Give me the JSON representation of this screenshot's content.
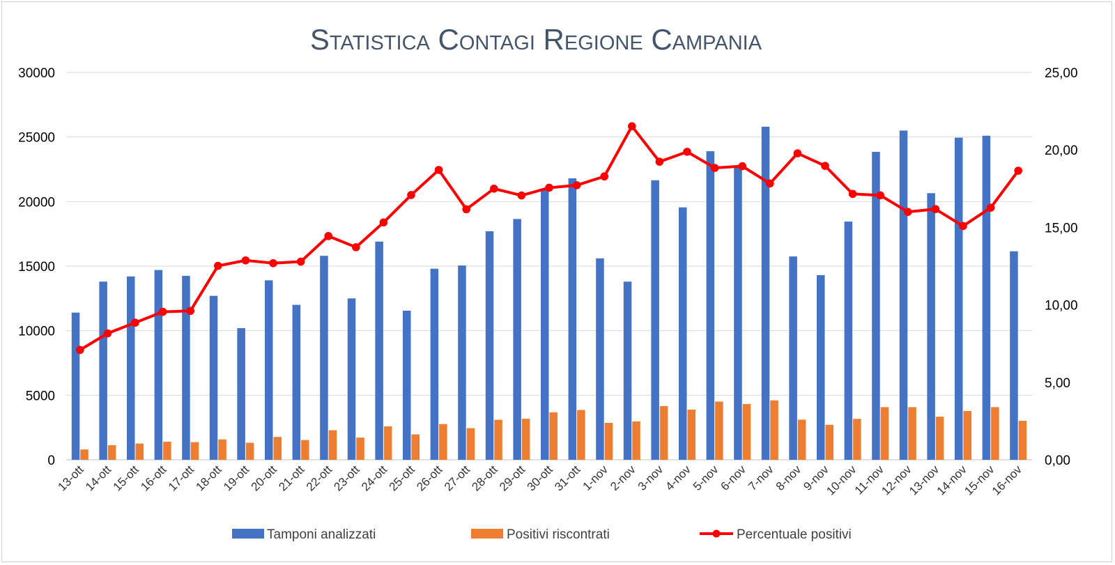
{
  "chart_data": {
    "type": "bar",
    "title": "Statistica Contagi Regione Campania",
    "categories": [
      "13-ott",
      "14-ott",
      "15-ott",
      "16-ott",
      "17-ott",
      "18-ott",
      "19-ott",
      "20-ott",
      "21-ott",
      "22-ott",
      "23-ott",
      "24-ott",
      "25-ott",
      "26-ott",
      "27-ott",
      "28-ott",
      "29-ott",
      "30-ott",
      "31-ott",
      "1-nov",
      "2-nov",
      "3-nov",
      "4-nov",
      "5-nov",
      "6-nov",
      "7-nov",
      "8-nov",
      "9-nov",
      "10-nov",
      "11-nov",
      "12-nov",
      "13-nov",
      "14-nov",
      "15-nov",
      "16-nov"
    ],
    "y_left": {
      "min": 0,
      "max": 30000,
      "ticks": [
        "0",
        "5000",
        "10000",
        "15000",
        "20000",
        "25000",
        "30000"
      ]
    },
    "y_right": {
      "min": 0,
      "max": 25,
      "ticks": [
        "0,00",
        "5,00",
        "10,00",
        "15,00",
        "20,00",
        "25,00"
      ]
    },
    "grid": true,
    "legend_position": "bottom",
    "series": [
      {
        "name": "Tamponi analizzati",
        "kind": "bar",
        "axis": "left",
        "color": "#4472c4",
        "values": [
          11400,
          13800,
          14200,
          14700,
          14250,
          12700,
          10200,
          13900,
          12000,
          15800,
          12500,
          16900,
          11550,
          14800,
          15050,
          17700,
          18650,
          20950,
          21800,
          15600,
          13800,
          21650,
          19550,
          23900,
          22800,
          25800,
          15750,
          14300,
          18450,
          23850,
          25500,
          20650,
          24950,
          25100,
          16150
        ]
      },
      {
        "name": "Positivi riscontrati",
        "kind": "bar",
        "axis": "left",
        "color": "#ed7d31",
        "values": [
          800,
          1130,
          1260,
          1400,
          1370,
          1580,
          1320,
          1770,
          1530,
          2290,
          1720,
          2590,
          1970,
          2770,
          2450,
          3100,
          3180,
          3680,
          3860,
          2860,
          2970,
          4160,
          3890,
          4510,
          4320,
          4600,
          3110,
          2710,
          3170,
          4080,
          4080,
          3340,
          3780,
          4080,
          3020
        ]
      },
      {
        "name": "Percentuale positivi",
        "kind": "line",
        "axis": "right",
        "color": "#ff0000",
        "values": [
          7.09,
          8.16,
          8.85,
          9.55,
          9.61,
          12.52,
          12.87,
          12.69,
          12.79,
          14.44,
          13.72,
          15.32,
          17.09,
          18.71,
          16.17,
          17.5,
          17.06,
          17.56,
          17.72,
          18.29,
          21.53,
          19.24,
          19.88,
          18.84,
          18.95,
          17.83,
          19.78,
          18.97,
          17.16,
          17.07,
          16.0,
          16.18,
          15.09,
          16.27,
          18.66
        ]
      }
    ]
  }
}
